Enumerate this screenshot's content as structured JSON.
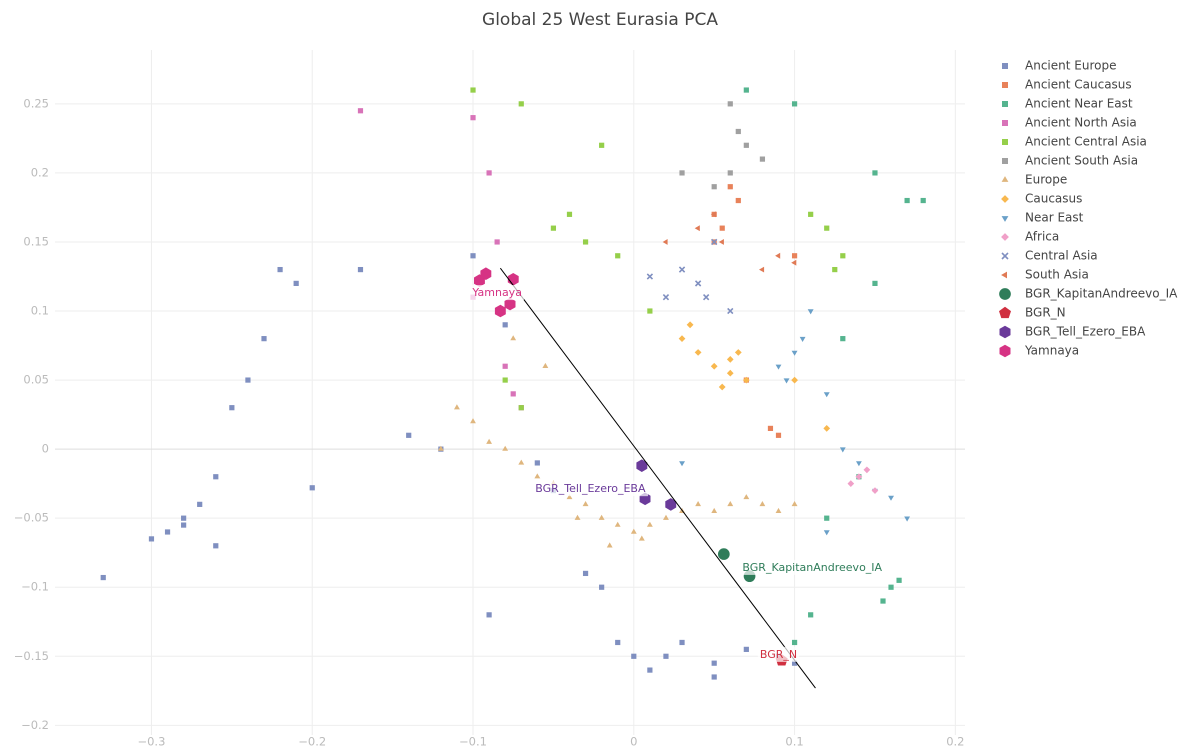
{
  "chart_data": {
    "type": "scatter",
    "title": "Global 25 West Eurasia PCA",
    "xlim": [
      -0.36,
      0.206
    ],
    "ylim": [
      -0.207,
      0.289
    ],
    "xticks": [
      {
        "value": -0.3,
        "label": "−0.3"
      },
      {
        "value": -0.2,
        "label": "−0.2"
      },
      {
        "value": -0.1,
        "label": "−0.1"
      },
      0,
      0.1,
      0.2
    ],
    "yticks": [
      {
        "value": -0.2,
        "label": "−0.2"
      },
      {
        "value": -0.15,
        "label": "−0.15"
      },
      {
        "value": -0.1,
        "label": "−0.1"
      },
      {
        "value": -0.05,
        "label": "−0.05"
      },
      0,
      0.05,
      0.1,
      0.15,
      0.2,
      0.25
    ],
    "grid": true,
    "legend": "right",
    "series": [
      {
        "name": "Ancient Europe",
        "color": "#7f8fc0",
        "symbol": "square",
        "x": [
          -0.33,
          -0.3,
          -0.28,
          -0.27,
          -0.29,
          -0.26,
          -0.25,
          -0.24,
          -0.23,
          -0.22,
          -0.21,
          -0.2,
          -0.17,
          -0.14,
          -0.12,
          -0.08,
          -0.05,
          -0.03,
          -0.02,
          0,
          0.01,
          0.03,
          0.05,
          0.07,
          0.09,
          0.1,
          -0.1,
          -0.06,
          0.05,
          -0.09,
          -0.28,
          -0.26,
          0.02,
          -0.01
        ],
        "y": [
          -0.093,
          -0.065,
          -0.05,
          -0.04,
          -0.06,
          -0.02,
          0.03,
          0.05,
          0.08,
          0.13,
          0.12,
          -0.028,
          0.13,
          0.01,
          0.0,
          0.09,
          -0.03,
          -0.09,
          -0.1,
          -0.15,
          -0.16,
          -0.14,
          -0.155,
          -0.145,
          -0.15,
          -0.155,
          0.14,
          -0.01,
          -0.165,
          -0.12,
          -0.055,
          -0.07,
          -0.15,
          -0.14
        ]
      },
      {
        "name": "Ancient Caucasus",
        "color": "#e8825a",
        "symbol": "square",
        "x": [
          0.05,
          0.06,
          0.055,
          0.065,
          0.05,
          0.1,
          0.07,
          0.09,
          0.085
        ],
        "y": [
          0.17,
          0.19,
          0.16,
          0.18,
          0.15,
          0.14,
          0.05,
          0.01,
          0.015
        ]
      },
      {
        "name": "Ancient Near East",
        "color": "#55b48f",
        "symbol": "square",
        "x": [
          0.17,
          0.15,
          0.16,
          0.165,
          0.12,
          0.1,
          0.07,
          0.1,
          0.15,
          0.13,
          0.14,
          0.155,
          0.18,
          0.11
        ],
        "y": [
          0.18,
          0.2,
          -0.1,
          -0.095,
          -0.05,
          -0.14,
          0.26,
          0.25,
          0.12,
          0.08,
          -0.02,
          -0.11,
          0.18,
          -0.12
        ]
      },
      {
        "name": "Ancient North Asia",
        "color": "#d873b8",
        "symbol": "square",
        "x": [
          -0.17,
          -0.1,
          -0.09,
          -0.07,
          -0.08,
          -0.1,
          -0.075,
          -0.085
        ],
        "y": [
          0.245,
          0.24,
          0.2,
          0.03,
          0.06,
          0.11,
          0.04,
          0.15
        ]
      },
      {
        "name": "Ancient Central Asia",
        "color": "#95cf4a",
        "symbol": "square",
        "x": [
          -0.1,
          -0.07,
          -0.04,
          -0.03,
          -0.01,
          0.12,
          0.13,
          0.11,
          -0.08,
          -0.07,
          -0.02,
          0.01,
          -0.05,
          0.125
        ],
        "y": [
          0.26,
          0.25,
          0.17,
          0.15,
          0.14,
          0.16,
          0.14,
          0.17,
          0.05,
          0.03,
          0.22,
          0.1,
          0.16,
          0.13
        ]
      },
      {
        "name": "Ancient South Asia",
        "color": "#a0a0a0",
        "symbol": "square",
        "x": [
          0.06,
          0.07,
          0.08,
          0.05,
          0.06,
          0.03,
          0.065
        ],
        "y": [
          0.2,
          0.22,
          0.21,
          0.19,
          0.25,
          0.2,
          0.23
        ]
      },
      {
        "name": "Europe",
        "color": "#dfb67e",
        "symbol": "triangle-up",
        "x": [
          -0.11,
          -0.1,
          -0.09,
          -0.08,
          -0.07,
          -0.06,
          -0.05,
          -0.04,
          -0.03,
          -0.02,
          -0.01,
          0,
          0.01,
          0.02,
          0.03,
          0.04,
          0.05,
          0.06,
          0.07,
          0.08,
          0.09,
          0.1,
          -0.075,
          -0.055,
          -0.035,
          -0.015,
          0.005,
          -0.12
        ],
        "y": [
          0.03,
          0.02,
          0.005,
          0.0,
          -0.01,
          -0.02,
          -0.025,
          -0.035,
          -0.04,
          -0.05,
          -0.055,
          -0.06,
          -0.055,
          -0.05,
          -0.045,
          -0.04,
          -0.045,
          -0.04,
          -0.035,
          -0.04,
          -0.045,
          -0.04,
          0.08,
          0.06,
          -0.05,
          -0.07,
          -0.065,
          0.0
        ]
      },
      {
        "name": "Caucasus",
        "color": "#f8b84f",
        "symbol": "diamond",
        "x": [
          0.03,
          0.05,
          0.06,
          0.07,
          0.04,
          0.1,
          0.12,
          0.06,
          0.055,
          0.065,
          0.035
        ],
        "y": [
          0.08,
          0.06,
          0.065,
          0.05,
          0.07,
          0.05,
          0.015,
          0.055,
          0.045,
          0.07,
          0.09
        ]
      },
      {
        "name": "Near East",
        "color": "#6aa0c8",
        "symbol": "triangle-down",
        "x": [
          0.1,
          0.12,
          0.15,
          0.16,
          0.14,
          0.13,
          0.09,
          0.11,
          0.03,
          0.17,
          0.12,
          0.105,
          0.095
        ],
        "y": [
          0.07,
          0.04,
          -0.03,
          -0.035,
          -0.01,
          0.0,
          0.06,
          0.1,
          -0.01,
          -0.05,
          -0.06,
          0.08,
          0.05
        ]
      },
      {
        "name": "Africa",
        "color": "#f0a0c8",
        "symbol": "diamond",
        "x": [
          0.14,
          0.145,
          0.135,
          0.15
        ],
        "y": [
          -0.02,
          -0.015,
          -0.025,
          -0.03
        ]
      },
      {
        "name": "Central Asia",
        "color": "#7f8fc0",
        "symbol": "x",
        "x": [
          0.03,
          0.04,
          0.02,
          0.05,
          0.01,
          0.06,
          0.045
        ],
        "y": [
          0.13,
          0.12,
          0.11,
          0.15,
          0.125,
          0.1,
          0.11
        ]
      },
      {
        "name": "South Asia",
        "color": "#e07a55",
        "symbol": "triangle-left",
        "x": [
          0.02,
          0.05,
          0.08,
          0.09,
          0.04,
          0.1,
          0.055
        ],
        "y": [
          0.15,
          0.17,
          0.13,
          0.14,
          0.16,
          0.135,
          0.15
        ]
      },
      {
        "name": "BGR_KapitanAndreevo_IA",
        "color": "#2f7d5a",
        "symbol": "circle",
        "x": [
          0.056,
          0.072
        ],
        "y": [
          -0.076,
          -0.092
        ]
      },
      {
        "name": "BGR_N",
        "color": "#d03040",
        "symbol": "pentagon",
        "x": [
          0.092
        ],
        "y": [
          -0.153
        ]
      },
      {
        "name": "BGR_Tell_Ezero_EBA",
        "color": "#6a3a9a",
        "symbol": "hexagon",
        "x": [
          0.005,
          0.007,
          0.023
        ],
        "y": [
          -0.012,
          -0.036,
          -0.04
        ]
      },
      {
        "name": "Yamnaya",
        "color": "#d63384",
        "symbol": "hexagon",
        "x": [
          -0.096,
          -0.092,
          -0.075,
          -0.083,
          -0.077
        ],
        "y": [
          0.122,
          0.127,
          0.123,
          0.1,
          0.105
        ]
      }
    ],
    "trend_line": {
      "x": [
        -0.083,
        0.113
      ],
      "y": [
        0.131,
        -0.173
      ]
    },
    "annotations": [
      {
        "text": "Yamnaya",
        "x": -0.085,
        "y": 0.113,
        "color": "#d63384"
      },
      {
        "text": "BGR_Tell_Ezero_EBA",
        "x": -0.027,
        "y": -0.029,
        "color": "#6a3a9a"
      },
      {
        "text": "BGR_KapitanAndreevo_IA",
        "x": 0.111,
        "y": -0.086,
        "color": "#2f7d5a"
      },
      {
        "text": "BGR_N",
        "x": 0.09,
        "y": -0.149,
        "color": "#d03040"
      }
    ]
  }
}
